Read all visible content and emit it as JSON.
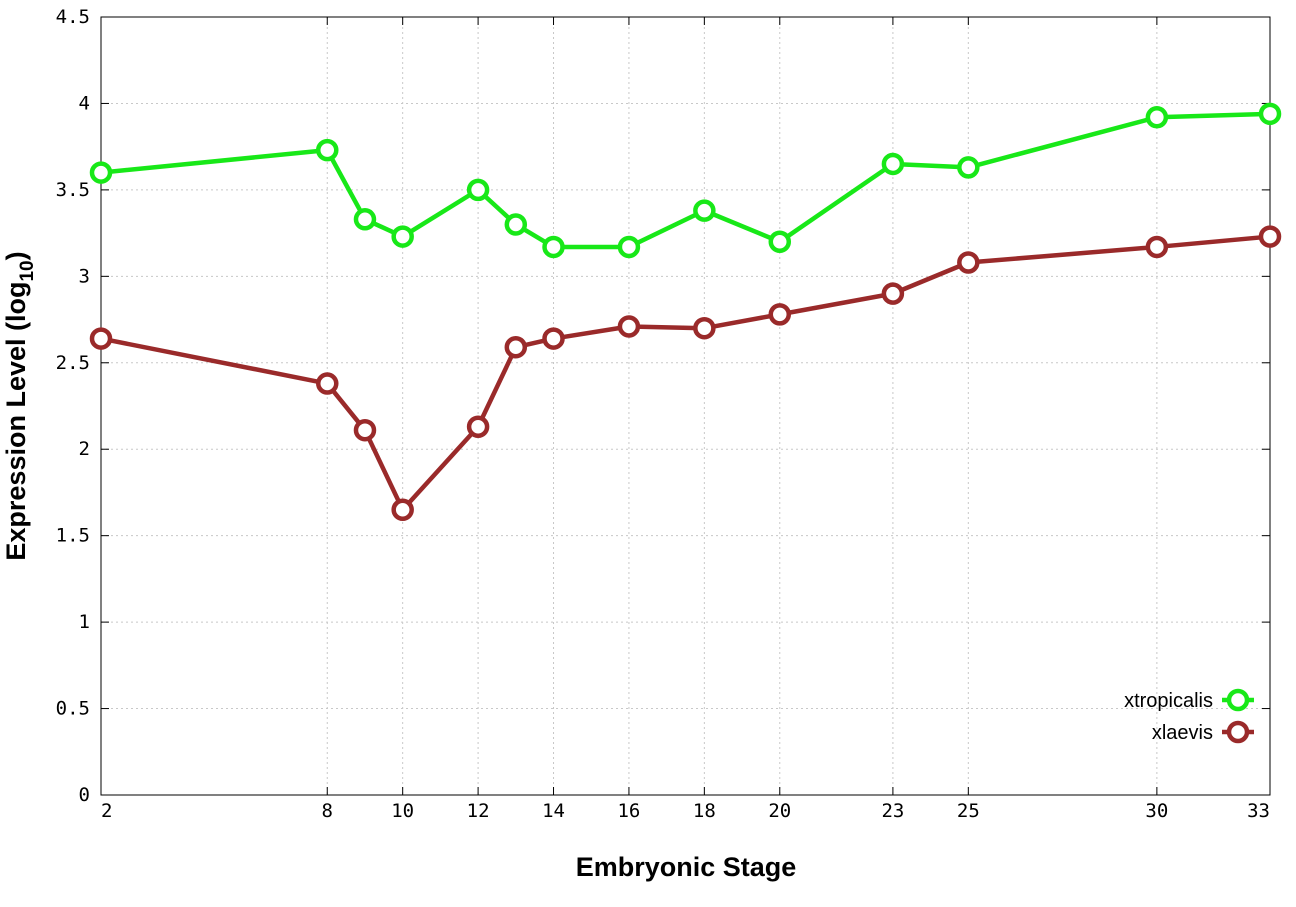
{
  "chart_data": {
    "type": "line",
    "xlabel": "Embryonic Stage",
    "ylabel": "Expression Level (log",
    "ylabel_sub": "10",
    "ylabel_end": ")",
    "xlim": [
      2,
      33
    ],
    "ylim": [
      0,
      4.5
    ],
    "x_ticks": [
      2,
      8,
      10,
      12,
      14,
      16,
      18,
      20,
      23,
      25,
      30,
      33
    ],
    "y_ticks": [
      0,
      0.5,
      1,
      1.5,
      2,
      2.5,
      3,
      3.5,
      4,
      4.5
    ],
    "y_tick_labels": [
      "0",
      "0.5",
      "1",
      "1.5",
      "2",
      "2.5",
      "3",
      "3.5",
      "4",
      "4.5"
    ],
    "grid": true,
    "legend_position": "bottom-right",
    "x": [
      2,
      8,
      9,
      10,
      12,
      13,
      14,
      16,
      18,
      20,
      23,
      25,
      30,
      33
    ],
    "series": [
      {
        "name": "xtropicalis",
        "color": "#18e818",
        "values": [
          3.6,
          3.73,
          3.33,
          3.23,
          3.5,
          3.3,
          3.17,
          3.17,
          3.38,
          3.2,
          3.65,
          3.63,
          3.92,
          3.94
        ]
      },
      {
        "name": "xlaevis",
        "color": "#9a2a2a",
        "values": [
          2.64,
          2.38,
          2.11,
          1.65,
          2.13,
          2.59,
          2.64,
          2.71,
          2.7,
          2.78,
          2.9,
          3.08,
          3.17,
          3.23
        ]
      }
    ]
  }
}
